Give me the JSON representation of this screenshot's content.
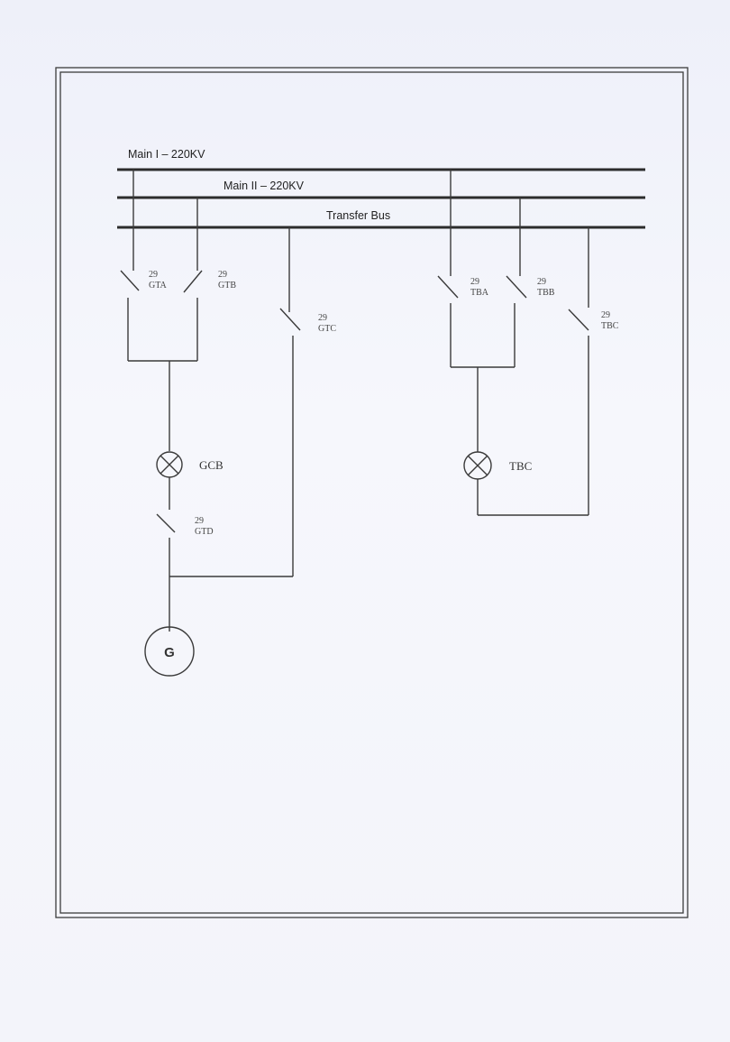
{
  "buses": {
    "main_1": "Main I – 220KV",
    "main_2": "Main II – 220KV",
    "transfer": "Transfer Bus"
  },
  "isolators": {
    "gta": {
      "num": "29",
      "code": "GTA"
    },
    "gtb": {
      "num": "29",
      "code": "GTB"
    },
    "gtc": {
      "num": "29",
      "code": "GTC"
    },
    "gtd": {
      "num": "29",
      "code": "GTD"
    },
    "tba": {
      "num": "29",
      "code": "TBA"
    },
    "tbb": {
      "num": "29",
      "code": "TBB"
    },
    "tbc": {
      "num": "29",
      "code": "TBC"
    }
  },
  "breakers": {
    "gcb": "GCB",
    "tbc": "TBC"
  },
  "generator": "G",
  "icons": [
    "breaker-symbol",
    "isolator-switch-symbol",
    "generator-symbol"
  ]
}
